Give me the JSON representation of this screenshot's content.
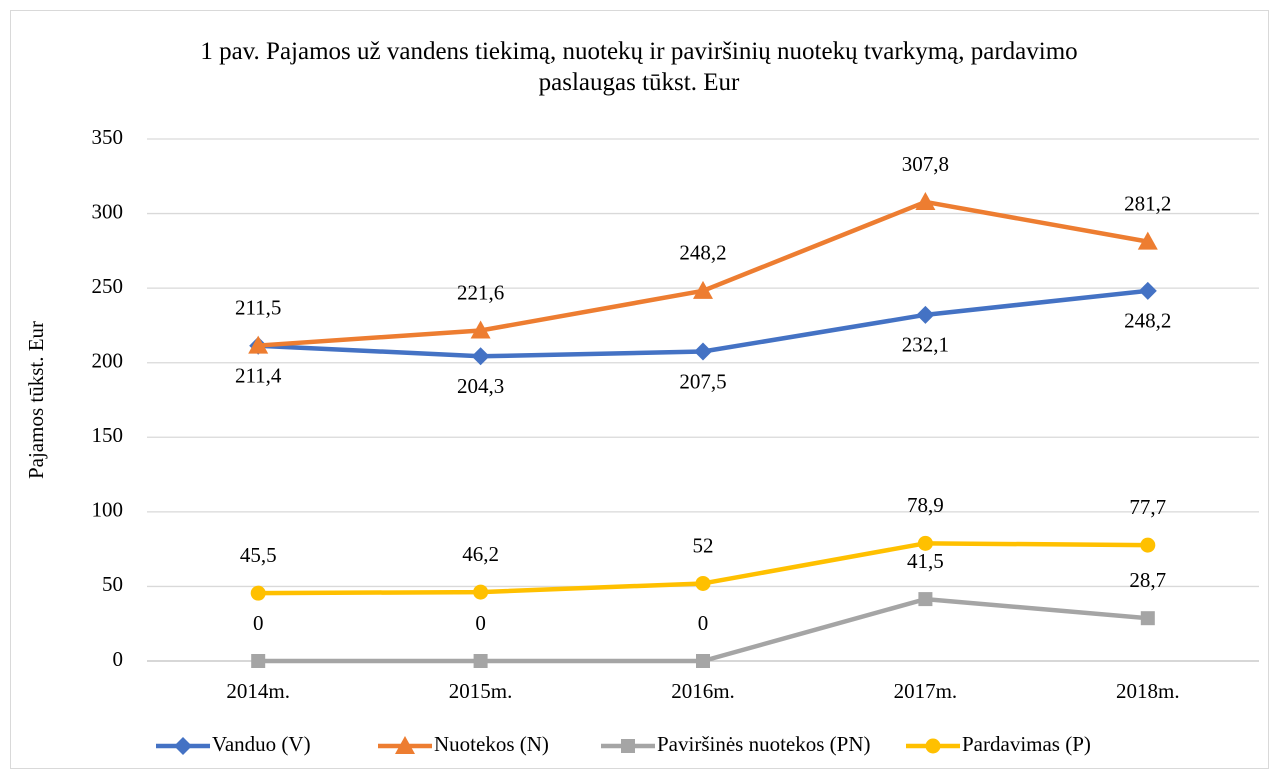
{
  "chart_data": {
    "type": "line",
    "title": "1 pav. Pajamos už vandens tiekimą, nuotekų ir paviršinių nuotekų tvarkymą, pardavimo paslaugas tūkst. Eur",
    "y_label": "Pajamos tūkst. Eur",
    "categories": [
      "2014m.",
      "2015m.",
      "2016m.",
      "2017m.",
      "2018m."
    ],
    "ylim": [
      0,
      350
    ],
    "yticks": [
      0,
      50,
      100,
      150,
      200,
      250,
      300,
      350
    ],
    "grid": true,
    "legend": "bottom",
    "series": [
      {
        "name": "Vanduo (V)",
        "color": "#4472c4",
        "values": [
          211.4,
          204.3,
          207.5,
          232.1,
          248.2
        ],
        "value_labels": [
          "211,4",
          "204,3",
          "207,5",
          "232,1",
          "248,2"
        ]
      },
      {
        "name": "Nuotekos (N)",
        "color": "#ed7d31",
        "values": [
          211.5,
          221.6,
          248.2,
          307.8,
          281.2
        ],
        "value_labels": [
          "211,5",
          "221,6",
          "248,2",
          "307,8",
          "281,2"
        ]
      },
      {
        "name": "Paviršinės nuotekos (PN)",
        "color": "#a5a5a5",
        "values": [
          0,
          0,
          0,
          41.5,
          28.7
        ],
        "value_labels": [
          "0",
          "0",
          "0",
          "41,5",
          "28,7"
        ]
      },
      {
        "name": "Pardavimas (P)",
        "color": "#ffc000",
        "values": [
          45.5,
          46.2,
          52,
          78.9,
          77.7
        ],
        "value_labels": [
          "45,5",
          "46,2",
          "52",
          "78,9",
          "77,7"
        ]
      }
    ]
  }
}
